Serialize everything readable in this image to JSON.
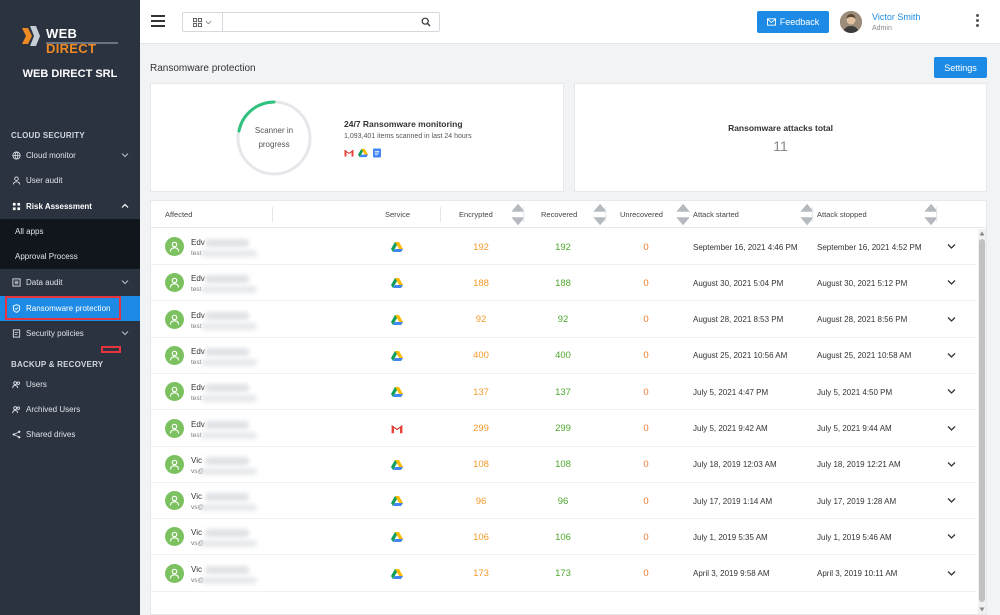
{
  "brand": {
    "logo_text_a": "WEB",
    "logo_text_b": "DIRECT",
    "company": "WEB DIRECT SRL"
  },
  "sidebar": {
    "section_cloud": "CLOUD SECURITY",
    "section_backup": "BACKUP & RECOVERY",
    "items": [
      {
        "label": "Cloud monitor",
        "icon": "globe-icon"
      },
      {
        "label": "User audit",
        "icon": "user-icon"
      },
      {
        "label": "Risk Assessment",
        "icon": "grid-icon"
      },
      {
        "label": "All apps"
      },
      {
        "label": "Approval Process"
      },
      {
        "label": "Data audit",
        "icon": "list-icon"
      },
      {
        "label": "Ransomware protection",
        "icon": "shield-icon"
      },
      {
        "label": "Security policies",
        "icon": "policy-icon"
      },
      {
        "label": "Users",
        "icon": "users-icon"
      },
      {
        "label": "Archived Users",
        "icon": "archived-users-icon"
      },
      {
        "label": "Shared drives",
        "icon": "share-icon"
      }
    ]
  },
  "topbar": {
    "search_placeholder": "",
    "feedback_label": "Feedback",
    "user_name": "Victor Smith",
    "user_role": "Admin"
  },
  "page": {
    "title": "Ransomware protection",
    "settings_label": "Settings"
  },
  "monitor": {
    "ring_text_1": "Scanner in",
    "ring_text_2": "progress",
    "title": "24/7 Ransomware monitoring",
    "subtitle": "1,093,401 items scanned in last 24 hours"
  },
  "attacks": {
    "title": "Ransomware attacks total",
    "value": "11"
  },
  "table": {
    "headers": {
      "affected": "Affected",
      "service": "Service",
      "encrypted": "Encrypted",
      "recovered": "Recovered",
      "unrecovered": "Unrecovered",
      "started": "Attack started",
      "stopped": "Attack stopped"
    },
    "rows": [
      {
        "name": "Edv",
        "email": "test",
        "service": "drive",
        "encrypted": "192",
        "recovered": "192",
        "unrecovered": "0",
        "started": "September 16, 2021 4:46 PM",
        "stopped": "September 16, 2021 4:52 PM"
      },
      {
        "name": "Edv",
        "email": "test",
        "service": "drive",
        "encrypted": "188",
        "recovered": "188",
        "unrecovered": "0",
        "started": "August 30, 2021 5:04 PM",
        "stopped": "August 30, 2021 5:12 PM"
      },
      {
        "name": "Edv",
        "email": "test",
        "service": "drive",
        "encrypted": "92",
        "recovered": "92",
        "unrecovered": "0",
        "started": "August 28, 2021 8:53 PM",
        "stopped": "August 28, 2021 8:56 PM"
      },
      {
        "name": "Edv",
        "email": "test",
        "service": "drive",
        "encrypted": "400",
        "recovered": "400",
        "unrecovered": "0",
        "started": "August 25, 2021 10:56 AM",
        "stopped": "August 25, 2021 10:58 AM"
      },
      {
        "name": "Edv",
        "email": "test",
        "service": "drive",
        "encrypted": "137",
        "recovered": "137",
        "unrecovered": "0",
        "started": "July 5, 2021 4:47 PM",
        "stopped": "July 5, 2021 4:50 PM"
      },
      {
        "name": "Edv",
        "email": "test",
        "service": "gmail",
        "encrypted": "299",
        "recovered": "299",
        "unrecovered": "0",
        "started": "July 5, 2021 9:42 AM",
        "stopped": "July 5, 2021 9:44 AM"
      },
      {
        "name": "Vic",
        "email": "vs@",
        "service": "drive",
        "encrypted": "108",
        "recovered": "108",
        "unrecovered": "0",
        "started": "July 18, 2019 12:03 AM",
        "stopped": "July 18, 2019 12:21 AM"
      },
      {
        "name": "Vic",
        "email": "vs@",
        "service": "drive",
        "encrypted": "96",
        "recovered": "96",
        "unrecovered": "0",
        "started": "July 17, 2019 1:14 AM",
        "stopped": "July 17, 2019 1:28 AM"
      },
      {
        "name": "Vic",
        "email": "vs@",
        "service": "drive",
        "encrypted": "106",
        "recovered": "106",
        "unrecovered": "0",
        "started": "July 1, 2019 5:35 AM",
        "stopped": "July 1, 2019 5:46 AM"
      },
      {
        "name": "Vic",
        "email": "vs@",
        "service": "drive",
        "encrypted": "173",
        "recovered": "173",
        "unrecovered": "0",
        "started": "April 3, 2019 9:58 AM",
        "stopped": "April 3, 2019 10:11 AM"
      }
    ]
  },
  "colors": {
    "accent": "#1d8be6",
    "sidebar_bg": "#2b3340",
    "encrypted": "#f39a2b",
    "recovered": "#4fa82f",
    "unrecovered": "#f07b2b"
  }
}
